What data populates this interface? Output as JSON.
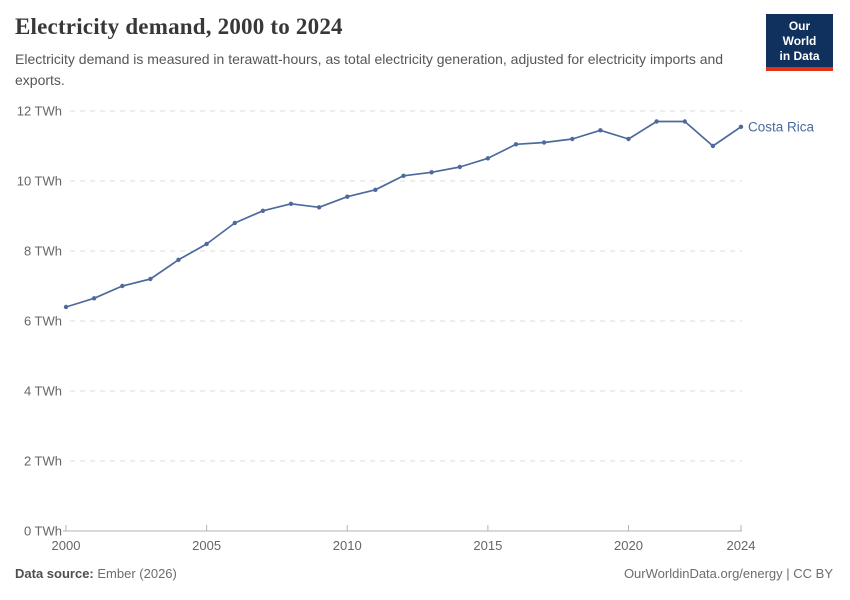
{
  "header": {
    "logo_line1": "Our World",
    "logo_line2": "in Data",
    "logo_bg_color": "#10305d",
    "logo_bar_color": "#e0311b"
  },
  "chart_data": {
    "type": "line",
    "title": "Electricity demand, 2000 to 2024",
    "subtitle": "Electricity demand is measured in terawatt-hours, as total electricity generation, adjusted for electricity imports and exports.",
    "unit": "TWh",
    "x": [
      2000,
      2001,
      2002,
      2003,
      2004,
      2005,
      2006,
      2007,
      2008,
      2009,
      2010,
      2011,
      2012,
      2013,
      2014,
      2015,
      2016,
      2017,
      2018,
      2019,
      2020,
      2021,
      2022,
      2023,
      2024
    ],
    "series": [
      {
        "name": "Costa Rica",
        "color": "#4c6a9c",
        "values": [
          6.4,
          6.65,
          7.0,
          7.2,
          7.75,
          8.2,
          8.8,
          9.15,
          9.35,
          9.25,
          9.55,
          9.75,
          10.15,
          10.25,
          10.4,
          10.65,
          11.05,
          11.1,
          11.2,
          11.45,
          11.2,
          11.7,
          11.7,
          11.0,
          11.55
        ]
      }
    ],
    "xlabel": "",
    "ylabel": "",
    "ylim": [
      0,
      12
    ],
    "yticks": [
      0,
      2,
      4,
      6,
      8,
      10,
      12
    ],
    "ytick_suffix": " TWh",
    "xticks": [
      2000,
      2005,
      2010,
      2015,
      2020,
      2024
    ],
    "grid": "horizontal-dashed",
    "legend_position": "end-of-line-label",
    "colors": {
      "line": "#4c6a9c",
      "grid": "#dddddd",
      "axis": "#b3b3b3",
      "tick_text": "#666666"
    }
  },
  "footer": {
    "source_label": "Data source:",
    "source_value": "Ember (2026)",
    "credit": "OurWorldinData.org/energy | CC BY"
  }
}
